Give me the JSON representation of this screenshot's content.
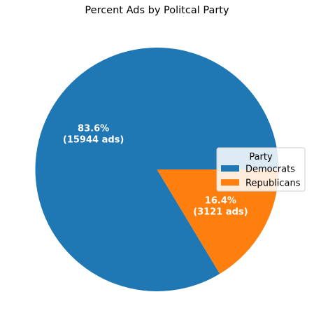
{
  "chart_data": {
    "type": "pie",
    "title": "Percent Ads by Politcal Party",
    "categories": [
      "Democrats",
      "Republicans"
    ],
    "values": [
      15944,
      3121
    ],
    "percent_labels": [
      "83.6%",
      "16.4%"
    ],
    "count_labels": [
      "(15944 ads)",
      "(3121 ads)"
    ],
    "colors": [
      "#1f77b4",
      "#ff7f0e"
    ],
    "legend": {
      "title": "Party",
      "entries": [
        "Democrats",
        "Republicans"
      ],
      "placement": "right"
    }
  }
}
